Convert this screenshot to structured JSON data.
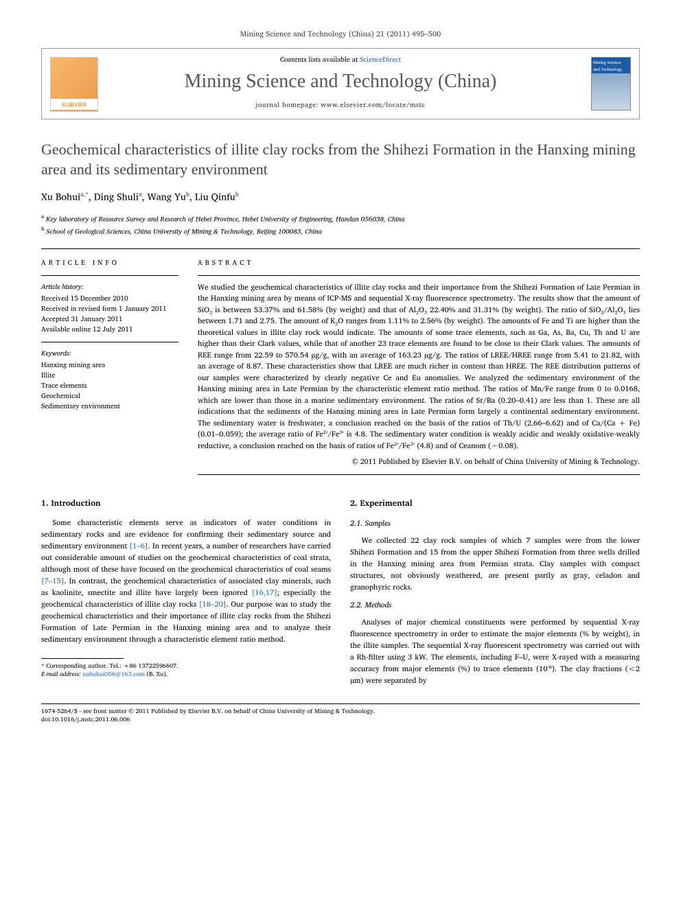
{
  "citation": "Mining Science and Technology (China) 21 (2011) 495–500",
  "header": {
    "contents_label": "Contents lists available at ",
    "contents_link": "ScienceDirect",
    "journal_name": "Mining Science and Technology (China)",
    "homepage_label": "journal homepage: www.elsevier.com/locate/mstc",
    "publisher": "ELSEVIER",
    "cover_label": "Mining Science and Technology"
  },
  "title": "Geochemical characteristics of illite clay rocks from the Shihezi Formation in the Hanxing mining area and its sedimentary environment",
  "authors": {
    "a1": {
      "name": "Xu Bohui",
      "marks": "a,*"
    },
    "a2": {
      "name": "Ding Shuli",
      "marks": "a"
    },
    "a3": {
      "name": "Wang Yu",
      "marks": "b"
    },
    "a4": {
      "name": "Liu Qinfu",
      "marks": "b"
    }
  },
  "affiliations": {
    "a": "Key laboratory of Resource Survey and Research of Hebei Province, Hebei University of Engineering, Handan 056038, China",
    "b": "School of Geological Sciences, China University of Mining & Technology, Beijing 100083, China"
  },
  "article_info": {
    "heading": "ARTICLE INFO",
    "history_label": "Article history:",
    "received": "Received 15 December 2010",
    "revised": "Received in revised form 1 January 2011",
    "accepted": "Accepted 31 January 2011",
    "online": "Available online 12 July 2011",
    "keywords_label": "Keywords:",
    "keywords": [
      "Hanxing mining area",
      "Illite",
      "Trace elements",
      "Geochemical",
      "Sedimentary environment"
    ]
  },
  "abstract": {
    "heading": "ABSTRACT",
    "text": "We studied the geochemical characteristics of illite clay rocks and their importance from the Shihezi Formation of Late Permian in the Hanxing mining area by means of ICP-MS and sequential X-ray fluorescence spectrometry. The results show that the amount of SiO₂ is between 53.37% and 61.58% (by weight) and that of Al₂O₃ 22.40% and 31.31% (by weight). The ratio of SiO₂/Al₂O₃ lies between 1.71 and 2.75. The amount of K₂O ranges from 1.11% to 2.56% (by weight). The amounts of Fe and Ti are higher than the theoretical values in illite clay rock would indicate. The amounts of some trace elements, such as Ga, As, Ba, Cu, Th and U are higher than their Clark values, while that of another 23 trace elements are found to be close to their Clark values. The amounts of REE range from 22.59 to 570.54 µg/g, with an average of 163.23 µg/g. The ratios of LREE/HREE range from 5.41 to 21.82, with an average of 8.87. These characteristics show that LREE are much richer in content than HREE. The REE distribution patterns of our samples were characterized by clearly negative Ce and Eu anomalies. We analyzed the sedimentary environment of the Hanxing mining area in Late Permian by the characteristic element ratio method. The ratios of Mn/Fe range from 0 to 0.0168, which are lower than those in a marine sedimentary environment. The ratios of Sr/Ba (0.20–0.41) are less than 1. These are all indications that the sediments of the Hanxing mining area in Late Permian form largely a continental sedimentary environment. The sedimentary water is freshwater, a conclusion reached on the basis of the ratios of Th/U (2.66–6.62) and of Ca/(Ca + Fe) (0.01–0.059); the average ratio of Fe²⁺/Fe³⁺ is 4.8. The sedimentary water condition is weakly acidic and weakly oxidative-weakly reductive, a conclusion reached on the basis of ratios of Fe²⁺/Fe³⁺ (4.8) and of Ceanom (−0.08).",
    "copyright": "© 2011 Published by Elsevier B.V. on behalf of China University of Mining & Technology."
  },
  "body": {
    "sec1": {
      "heading": "1. Introduction",
      "p1_a": "Some characteristic elements serve as indicators of water conditions in sedimentary rocks and are evidence for confirming their sedimentary source and sedimentary environment ",
      "ref1": "[1–6]",
      "p1_b": ". In recent years, a number of researchers have carried out considerable amount of studies on the geochemical characteristics of coal strata, although most of these have focused on the geochemical characteristics of coal seams ",
      "ref2": "[7–15]",
      "p1_c": ". In contrast, the geochemical characteristics of associated clay minerals, such as kaolinite, smectite and illite have largely been ignored ",
      "ref3": "[16,17]",
      "p1_d": "; especially the geochemical characteristics of illite clay rocks ",
      "ref4": "[18–20]",
      "p1_e": ". Our purpose was to study the geochemical characteristics and their importance of illite clay rocks from the Shihezi Formation of Late Permian in the Hanxing mining area and to analyze their sedimentary environment through a characteristic element ratio method."
    },
    "sec2": {
      "heading": "2. Experimental",
      "sub1": {
        "heading": "2.1. Samples",
        "p": "We collected 22 clay rock samples of which 7 samples were from the lower Shihezi Formation and 15 from the upper Shihezi Formation from three wells drilled in the Hanxing mining area from Permian strata. Clay samples with compact structures, not obviously weathered, are present partly as gray, celadon and granophyric rocks."
      },
      "sub2": {
        "heading": "2.2. Methods",
        "p": "Analyses of major chemical constituents were performed by sequential X-ray fluorescence spectrometry in order to estimate the major elements (% by weight), in the illite samples. The sequential X-ray fluorescent spectrometry was carried out with a Rh-filter using 3 kW. The elements, including F–U, were X-rayed with a measuring accuracy from major elements (%) to trace elements (10⁻⁶). The clay fractions (<2 µm) were separated by"
      }
    }
  },
  "footnote": {
    "corr_label": "* Corresponding author. Tel.: +86 13722596607.",
    "email_label": "E-mail address: ",
    "email": "xubohui056@163.com",
    "email_suffix": " (B. Xu)."
  },
  "footer": {
    "line1": "1674-5264/$ - see front matter © 2011 Published by Elsevier B.V. on behalf of China University of Mining & Technology.",
    "line2": "doi:10.1016/j.mstc.2011.06.006"
  },
  "colors": {
    "link": "#1b6bb8",
    "title": "#434343",
    "journal": "#555555",
    "elsevier": "#ff6600"
  }
}
